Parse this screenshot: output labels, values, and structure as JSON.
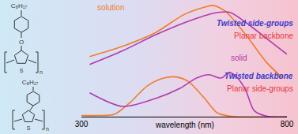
{
  "chart_data": {
    "type": "line",
    "xlabel": "wavelength (nm)",
    "xlim": [
      300,
      800
    ],
    "xticks": [
      300,
      800
    ],
    "ylim": [
      0,
      10
    ],
    "tick_labels": "x",
    "grid": false,
    "series": [
      {
        "color": "#f07c2a",
        "x": [
          320,
          400,
          480,
          550,
          600,
          620,
          650,
          700,
          750,
          790
        ],
        "values": [
          5.3,
          6.2,
          7.4,
          9.0,
          9.65,
          9.8,
          9.3,
          7.2,
          4.8,
          3.4
        ]
      },
      {
        "color": "#b03ab0",
        "x": [
          320,
          400,
          480,
          560,
          620,
          660,
          700,
          750,
          800
        ],
        "values": [
          4.6,
          5.8,
          7.2,
          8.4,
          9.1,
          9.2,
          8.3,
          6.9,
          5.5
        ]
      },
      {
        "color": "#f07c2a",
        "x": [
          300,
          340,
          380,
          420,
          460,
          500,
          530,
          560,
          600,
          630,
          660,
          800
        ],
        "values": [
          0.1,
          0.1,
          0.2,
          1.3,
          2.7,
          3.4,
          3.5,
          3.1,
          1.6,
          0.35,
          0.05,
          0
        ]
      },
      {
        "color": "#b03ab0",
        "x": [
          320,
          400,
          480,
          540,
          580,
          610,
          640,
          660,
          680,
          700,
          720,
          750,
          800
        ],
        "values": [
          2.1,
          0.9,
          1.6,
          2.5,
          3.4,
          3.7,
          3.4,
          3.9,
          3.4,
          2.3,
          0.55,
          0.05,
          0
        ]
      }
    ],
    "annotations": [
      {
        "text": "solution",
        "color": "#f07c2a"
      },
      {
        "text": "solid",
        "color": "#b03ab0"
      },
      {
        "text": "Twisted side-groups",
        "color": "#3a3acc"
      },
      {
        "text": "Planar backbone",
        "color": "#e8383d"
      },
      {
        "text": "Twisted backbone",
        "color": "#3a3acc"
      },
      {
        "text": "Planar side-groups",
        "color": "#e8383d"
      }
    ],
    "structures": [
      {
        "substituent": "C₈H₁₇",
        "atoms": [
          "O",
          "S"
        ],
        "repeat": "n"
      },
      {
        "substituent": "C₈H₁₇",
        "atoms": [
          "S"
        ],
        "repeat": "n"
      }
    ]
  }
}
